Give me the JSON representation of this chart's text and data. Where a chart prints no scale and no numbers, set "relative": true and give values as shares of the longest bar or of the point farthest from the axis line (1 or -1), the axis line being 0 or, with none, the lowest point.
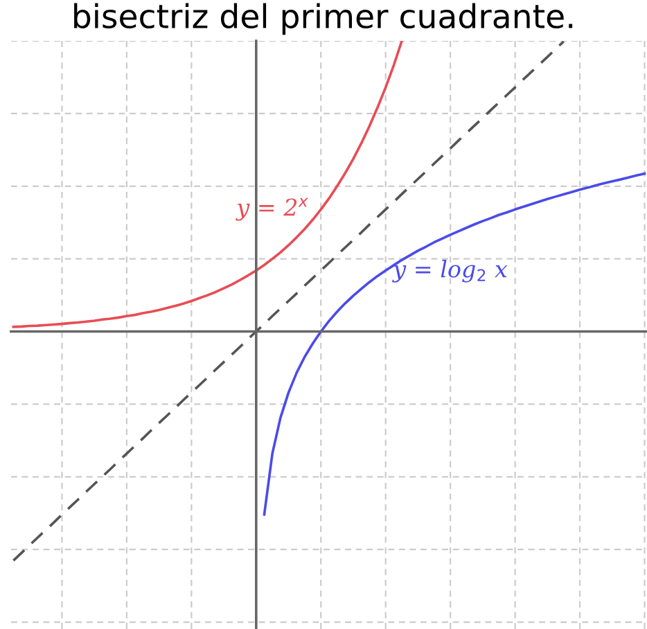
{
  "chart_data": {
    "type": "line",
    "title": "bisectriz del primer cuadrante.",
    "relative": true,
    "grid": true,
    "legend": false,
    "marker": "none",
    "categories": [
      null,
      null,
      null,
      null,
      null,
      null,
      null,
      null,
      null,
      null,
      null,
      null,
      null,
      null,
      null,
      null,
      null,
      null,
      null,
      null,
      null,
      null,
      null,
      null,
      null,
      null,
      null,
      null,
      null,
      null,
      null,
      null,
      null,
      null,
      null,
      null,
      null,
      null,
      null,
      null,
      null,
      null,
      null,
      null,
      null,
      null,
      null,
      null,
      null,
      null,
      null,
      null,
      null,
      null,
      null,
      null,
      null,
      null,
      null,
      null,
      null,
      null,
      null,
      null,
      null,
      null,
      null,
      null,
      null,
      null,
      null,
      null,
      null,
      null,
      null,
      null,
      null,
      null,
      null
    ],
    "series": [
      {
        "name": "y = 2$^{x}$",
        "color": "#e84c55",
        "line_style": "solid",
        "values": [
          0.016,
          0.017,
          0.019,
          0.02,
          0.022,
          0.024,
          0.026,
          0.029,
          0.031,
          0.034,
          0.037,
          0.041,
          0.044,
          0.048,
          0.053,
          0.057,
          0.063,
          0.068,
          0.074,
          0.081,
          0.088,
          0.096,
          0.105,
          0.115,
          0.125,
          0.136,
          0.149,
          0.162,
          0.177,
          0.193,
          0.21,
          0.229,
          0.25,
          0.272,
          0.297,
          0.324,
          0.353,
          0.385,
          0.42,
          0.458,
          0.5,
          0.545,
          0.594,
          0.648,
          0.707,
          0.771,
          0.84,
          0.916,
          1.0,
          null,
          null,
          null,
          null,
          null,
          null,
          null,
          null,
          null,
          null,
          null,
          null,
          null,
          null,
          null,
          null,
          null,
          null,
          null,
          null,
          null,
          null,
          null,
          null,
          null,
          null,
          null,
          null,
          null,
          null
        ]
      },
      {
        "color": "#555555",
        "line_style": "dashed",
        "values": [
          -0.788,
          -0.762,
          -0.735,
          -0.709,
          -0.683,
          -0.657,
          -0.63,
          -0.604,
          -0.578,
          -0.551,
          -0.525,
          -0.499,
          -0.473,
          -0.446,
          -0.42,
          -0.394,
          -0.368,
          -0.341,
          -0.315,
          -0.289,
          -0.263,
          -0.236,
          -0.21,
          -0.184,
          -0.158,
          -0.131,
          -0.105,
          -0.079,
          -0.053,
          -0.026,
          0,
          0.026,
          0.053,
          0.079,
          0.105,
          0.131,
          0.158,
          0.184,
          0.21,
          0.236,
          0.263,
          0.289,
          0.315,
          0.341,
          0.368,
          0.394,
          0.42,
          0.446,
          0.473,
          0.499,
          0.525,
          0.551,
          0.578,
          0.604,
          0.63,
          0.657,
          0.683,
          0.709,
          0.735,
          0.762,
          0.788,
          0.814,
          0.84,
          0.867,
          0.893,
          0.919,
          0.945,
          0.972,
          0.998,
          null,
          null,
          null,
          null,
          null,
          null,
          null,
          null,
          null,
          null
        ]
      },
      {
        "name": "y = log$_{2}$ x",
        "color": "#4b4bea",
        "line_style": "solid",
        "values": [
          null,
          null,
          null,
          null,
          null,
          null,
          null,
          null,
          null,
          null,
          null,
          null,
          null,
          null,
          null,
          null,
          null,
          null,
          null,
          null,
          null,
          null,
          null,
          null,
          null,
          null,
          null,
          null,
          null,
          null,
          null,
          -0.63,
          -0.42,
          -0.297,
          -0.21,
          -0.142,
          -0.087,
          -0.041,
          0,
          0.036,
          0.068,
          0.097,
          0.123,
          0.147,
          0.17,
          0.191,
          0.21,
          0.228,
          0.246,
          0.262,
          0.278,
          0.292,
          0.307,
          0.32,
          0.333,
          0.345,
          0.357,
          0.369,
          0.38,
          0.39,
          0.401,
          0.41,
          0.42,
          0.429,
          0.438,
          0.447,
          0.456,
          0.464,
          0.472,
          0.48,
          0.488,
          0.495,
          0.503,
          0.51,
          0.517,
          0.523,
          0.53,
          0.537,
          0.543
        ]
      }
    ]
  }
}
